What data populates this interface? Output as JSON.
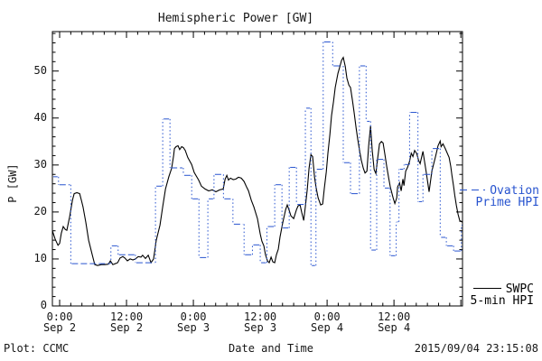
{
  "title": "Hemispheric Power [GW]",
  "y_axis": {
    "label": "P [GW]",
    "ticks": [
      0,
      10,
      20,
      30,
      40,
      50
    ],
    "minor_step": 2
  },
  "x_axis": {
    "label": "Date and Time",
    "major_ticks_t": [
      0,
      12,
      24,
      36,
      48,
      60,
      72
    ],
    "minor_step_hours": 2,
    "labels": [
      {
        "t": 0,
        "time": "0:00",
        "date": "Sep 2"
      },
      {
        "t": 12,
        "time": "12:00",
        "date": "Sep 2"
      },
      {
        "t": 24,
        "time": "0:00",
        "date": "Sep 3"
      },
      {
        "t": 36,
        "time": "12:00",
        "date": "Sep 3"
      },
      {
        "t": 48,
        "time": "0:00",
        "date": "Sep 4"
      },
      {
        "t": 60,
        "time": "12:00",
        "date": "Sep 4"
      }
    ]
  },
  "footer": {
    "left": "Plot: CCMC",
    "right": "2015/09/04 23:15:08"
  },
  "legend": {
    "ovation": {
      "line1": "Ovation",
      "line2": "Prime HPI"
    },
    "swpc": {
      "line1": "SWPC",
      "line2": "5-min HPI"
    }
  },
  "colors": {
    "ovation": "#2753cf",
    "swpc": "#000000"
  },
  "chart_data": {
    "type": "line",
    "title": "Hemispheric Power [GW]",
    "xlabel": "Date and Time",
    "ylabel": "P [GW]",
    "x_unit": "hours since 2015-09-02 00:00 UT",
    "xlim": [
      -1.3,
      72.3
    ],
    "ylim": [
      0,
      58.4
    ],
    "grid": false,
    "legend_position": "right-outside",
    "series": [
      {
        "name": "SWPC 5-min HPI",
        "style": "solid",
        "color": "#000000",
        "points": [
          [
            -1.3,
            16.0
          ],
          [
            -0.8,
            14.2
          ],
          [
            -0.3,
            12.9
          ],
          [
            0,
            13.3
          ],
          [
            0.3,
            15.5
          ],
          [
            0.65,
            16.9
          ],
          [
            1,
            16.3
          ],
          [
            1.3,
            16.1
          ],
          [
            1.8,
            19
          ],
          [
            2.3,
            22.5
          ],
          [
            2.6,
            23.9
          ],
          [
            3.1,
            24.1
          ],
          [
            3.6,
            23.9
          ],
          [
            3.9,
            22.5
          ],
          [
            4.2,
            21.1
          ],
          [
            4.7,
            17.8
          ],
          [
            5.2,
            14
          ],
          [
            5.85,
            10.9
          ],
          [
            6.3,
            8.8
          ],
          [
            6.8,
            8.6
          ],
          [
            7.5,
            8.8
          ],
          [
            8.1,
            8.8
          ],
          [
            8.75,
            8.9
          ],
          [
            9.1,
            9.6
          ],
          [
            9.55,
            8.8
          ],
          [
            10.4,
            9.2
          ],
          [
            10.85,
            10.2
          ],
          [
            11.35,
            10.5
          ],
          [
            11.7,
            10.2
          ],
          [
            12.15,
            9.6
          ],
          [
            12.65,
            10
          ],
          [
            13.15,
            9.8
          ],
          [
            13.6,
            10
          ],
          [
            14.1,
            10.5
          ],
          [
            14.6,
            10.4
          ],
          [
            14.9,
            10.8
          ],
          [
            15.4,
            10.1
          ],
          [
            15.9,
            10.8
          ],
          [
            16.4,
            9.2
          ],
          [
            16.85,
            10
          ],
          [
            17.35,
            14
          ],
          [
            18,
            17.2
          ],
          [
            18.5,
            21.1
          ],
          [
            19,
            24.9
          ],
          [
            19.6,
            27.5
          ],
          [
            20.1,
            29.3
          ],
          [
            20.45,
            32
          ],
          [
            20.6,
            33.5
          ],
          [
            20.9,
            33.9
          ],
          [
            21.25,
            34.1
          ],
          [
            21.55,
            33.3
          ],
          [
            21.9,
            33.9
          ],
          [
            22.2,
            33.7
          ],
          [
            22.55,
            33.1
          ],
          [
            23,
            31.6
          ],
          [
            23.7,
            30.1
          ],
          [
            24.15,
            28.4
          ],
          [
            24.95,
            26.8
          ],
          [
            25.45,
            25.5
          ],
          [
            26.1,
            24.9
          ],
          [
            26.75,
            24.5
          ],
          [
            27.4,
            24.7
          ],
          [
            28.05,
            24.3
          ],
          [
            28.7,
            24.7
          ],
          [
            29.35,
            24.9
          ],
          [
            29.7,
            27
          ],
          [
            30,
            27.8
          ],
          [
            30.3,
            26.8
          ],
          [
            30.65,
            27.2
          ],
          [
            31.15,
            26.9
          ],
          [
            31.6,
            27
          ],
          [
            32.1,
            27.4
          ],
          [
            32.6,
            27.2
          ],
          [
            33.1,
            26.5
          ],
          [
            33.55,
            25.3
          ],
          [
            33.9,
            24.5
          ],
          [
            34.4,
            22.5
          ],
          [
            34.85,
            21.1
          ],
          [
            35.5,
            18.6
          ],
          [
            36,
            15.3
          ],
          [
            36.3,
            13.8
          ],
          [
            36.65,
            12.8
          ],
          [
            36.95,
            10.9
          ],
          [
            37.3,
            9.6
          ],
          [
            37.6,
            9.2
          ],
          [
            37.95,
            10.4
          ],
          [
            38.25,
            9.4
          ],
          [
            38.6,
            9.2
          ],
          [
            38.9,
            10.9
          ],
          [
            39.25,
            12.1
          ],
          [
            39.55,
            14.7
          ],
          [
            40.05,
            17.8
          ],
          [
            40.55,
            20.5
          ],
          [
            40.85,
            21.5
          ],
          [
            41.2,
            20.3
          ],
          [
            41.5,
            19.2
          ],
          [
            42,
            18.6
          ],
          [
            42.5,
            20.5
          ],
          [
            42.8,
            21.3
          ],
          [
            43.15,
            21.5
          ],
          [
            43.45,
            19.9
          ],
          [
            43.8,
            18.2
          ],
          [
            44.1,
            21.1
          ],
          [
            44.45,
            24.9
          ],
          [
            44.75,
            29.3
          ],
          [
            45.1,
            32.2
          ],
          [
            45.4,
            31.8
          ],
          [
            45.75,
            27.4
          ],
          [
            46.05,
            25
          ],
          [
            46.4,
            23
          ],
          [
            46.85,
            21.5
          ],
          [
            47.2,
            21.7
          ],
          [
            47.5,
            25
          ],
          [
            47.85,
            28.5
          ],
          [
            48.15,
            32.5
          ],
          [
            48.5,
            36.5
          ],
          [
            48.8,
            40.5
          ],
          [
            49.15,
            43.5
          ],
          [
            49.45,
            46.5
          ],
          [
            49.95,
            49.5
          ],
          [
            50.25,
            50.8
          ],
          [
            50.6,
            52.3
          ],
          [
            50.9,
            52.9
          ],
          [
            51.25,
            51
          ],
          [
            51.55,
            48.5
          ],
          [
            51.9,
            47
          ],
          [
            52.2,
            46.5
          ],
          [
            52.55,
            43.7
          ],
          [
            52.85,
            41.2
          ],
          [
            53.2,
            37.9
          ],
          [
            53.5,
            35.5
          ],
          [
            53.85,
            32.9
          ],
          [
            54.15,
            31
          ],
          [
            54.5,
            29.3
          ],
          [
            54.8,
            28.3
          ],
          [
            55.15,
            28.7
          ],
          [
            55.45,
            34.1
          ],
          [
            55.8,
            38.3
          ],
          [
            56.1,
            33
          ],
          [
            56.45,
            29
          ],
          [
            56.75,
            28.2
          ],
          [
            57.1,
            31.6
          ],
          [
            57.4,
            34.5
          ],
          [
            57.75,
            35
          ],
          [
            58.05,
            34.7
          ],
          [
            58.4,
            32
          ],
          [
            58.7,
            29.7
          ],
          [
            59.05,
            27.2
          ],
          [
            59.35,
            25.3
          ],
          [
            59.85,
            23
          ],
          [
            60.15,
            21.8
          ],
          [
            60.5,
            23
          ],
          [
            60.65,
            25.3
          ],
          [
            61,
            26.2
          ],
          [
            61.3,
            24.5
          ],
          [
            61.6,
            27
          ],
          [
            61.8,
            25.6
          ],
          [
            62.1,
            28.7
          ],
          [
            62.45,
            29.5
          ],
          [
            62.8,
            30.8
          ],
          [
            63.1,
            32.5
          ],
          [
            63.4,
            31.8
          ],
          [
            63.7,
            33.1
          ],
          [
            64.1,
            32.4
          ],
          [
            64.4,
            31
          ],
          [
            64.7,
            30.3
          ],
          [
            65.2,
            32.9
          ],
          [
            65.8,
            28.4
          ],
          [
            66.3,
            24.3
          ],
          [
            66.8,
            28.7
          ],
          [
            67.5,
            32
          ],
          [
            67.9,
            34.1
          ],
          [
            68.3,
            35.1
          ],
          [
            68.45,
            33.9
          ],
          [
            68.8,
            34.5
          ],
          [
            69.2,
            33.5
          ],
          [
            69.9,
            31.6
          ],
          [
            70.2,
            29.7
          ],
          [
            70.4,
            27.8
          ],
          [
            70.7,
            25.5
          ],
          [
            70.9,
            23.6
          ],
          [
            71.2,
            21.4
          ],
          [
            71.5,
            19.5
          ],
          [
            71.8,
            18.2
          ],
          [
            72.3,
            17.8
          ]
        ]
      },
      {
        "name": "Ovation Prime HPI",
        "style": "step-dashed-with-dotted-connectors",
        "color": "#2753cf",
        "steps": [
          [
            -1.3,
            -0.2,
            27.5
          ],
          [
            -0.2,
            2,
            25.8
          ],
          [
            2,
            9.2,
            9
          ],
          [
            9.2,
            10.5,
            12.8
          ],
          [
            10.5,
            13.6,
            10.9
          ],
          [
            13.6,
            17.2,
            9.2
          ],
          [
            17.2,
            18.5,
            25.5
          ],
          [
            18.5,
            19.8,
            39.8
          ],
          [
            19.8,
            22.2,
            29.4
          ],
          [
            22.2,
            23.7,
            27.8
          ],
          [
            23.7,
            25,
            22.8
          ],
          [
            25,
            26.6,
            10.3
          ],
          [
            26.6,
            27.7,
            22.8
          ],
          [
            27.7,
            29.4,
            28
          ],
          [
            29.4,
            31.1,
            22.8
          ],
          [
            31.1,
            33.1,
            17.4
          ],
          [
            33.1,
            34.6,
            10.9
          ],
          [
            34.6,
            36,
            13
          ],
          [
            36,
            37.2,
            9.2
          ],
          [
            37.2,
            38.6,
            16.9
          ],
          [
            38.6,
            39.9,
            25.8
          ],
          [
            39.9,
            41.2,
            16.6
          ],
          [
            41.2,
            42.5,
            29.5
          ],
          [
            42.5,
            44.1,
            21.6
          ],
          [
            44.1,
            45.1,
            42.1
          ],
          [
            45.1,
            46,
            8.6
          ],
          [
            46,
            47.3,
            29.1
          ],
          [
            47.3,
            49,
            56.2
          ],
          [
            49,
            50.9,
            51.1
          ],
          [
            50.9,
            52.2,
            30.5
          ],
          [
            52.2,
            53.8,
            23.9
          ],
          [
            53.8,
            55,
            51.1
          ],
          [
            55,
            55.8,
            39.3
          ],
          [
            55.8,
            56.9,
            11.9
          ],
          [
            56.9,
            58.2,
            31.2
          ],
          [
            58.2,
            59.3,
            25.1
          ],
          [
            59.3,
            60.4,
            10.7
          ],
          [
            60.4,
            60.9,
            17.9
          ],
          [
            60.9,
            61.8,
            29.1
          ],
          [
            61.8,
            62.8,
            30.1
          ],
          [
            62.8,
            64.3,
            41.2
          ],
          [
            64.3,
            65.2,
            22.2
          ],
          [
            65.2,
            66.8,
            28
          ],
          [
            66.8,
            68.3,
            33.5
          ],
          [
            68.3,
            69.4,
            14.6
          ],
          [
            69.4,
            70.7,
            12.8
          ],
          [
            70.7,
            72.1,
            11.7
          ],
          [
            72.1,
            72.3,
            17.2
          ]
        ]
      }
    ]
  }
}
